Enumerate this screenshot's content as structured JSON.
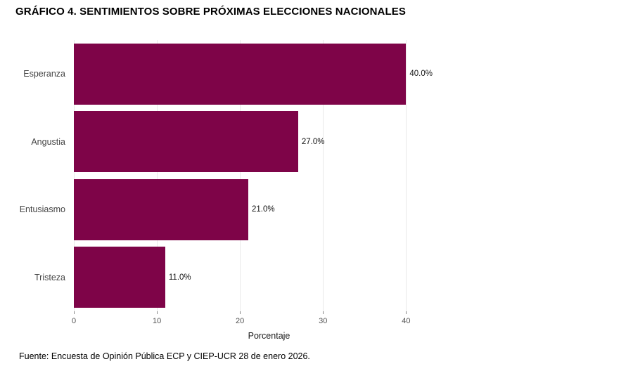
{
  "title": "GRÁFICO 4. SENTIMIENTOS SOBRE PRÓXIMAS ELECCIONES NACIONALES",
  "source": "Fuente: Encuesta de Opinión Pública ECP y CIEP-UCR 28 de enero 2026.",
  "colors": {
    "bar": "#7E0448",
    "grid": "#E9E9E9",
    "tick_mark": "#888888",
    "tick_text": "#555555",
    "category_text": "#444444",
    "value_text": "#111111",
    "background": "#FFFFFF"
  },
  "chart_data": {
    "type": "bar",
    "orientation": "horizontal",
    "categories": [
      "Esperanza",
      "Angustia",
      "Entusiasmo",
      "Tristeza"
    ],
    "values": [
      40.0,
      27.0,
      21.0,
      11.0
    ],
    "value_labels": [
      "40.0%",
      "27.0%",
      "21.0%",
      "11.0%"
    ],
    "title": "GRÁFICO 4. SENTIMIENTOS SOBRE PRÓXIMAS ELECCIONES NACIONALES",
    "xlabel": "Porcentaje",
    "ylabel": "",
    "xlim": [
      0,
      47
    ],
    "xticks": [
      0,
      10,
      20,
      30,
      40
    ],
    "grid": "vertical-major-only",
    "legend": "none",
    "bar_color": "#7E0448"
  }
}
